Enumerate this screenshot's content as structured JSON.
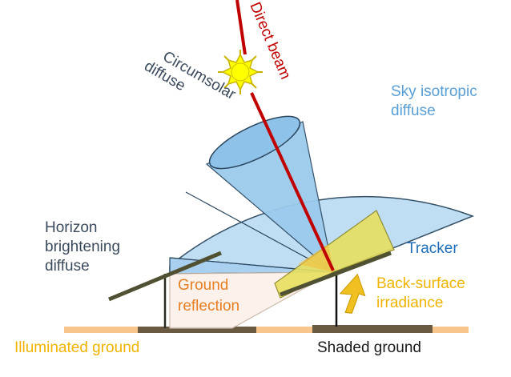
{
  "labels": {
    "direct_beam": "Direct beam",
    "circumsolar": [
      "Circumsolar",
      "diffuse"
    ],
    "sky_isotropic": [
      "Sky isotropic",
      "diffuse"
    ],
    "horizon": [
      "Horizon",
      "brightening",
      "diffuse"
    ],
    "tracker": "Tracker",
    "ground_reflection": [
      "Ground",
      "reflection"
    ],
    "back_surface": [
      "Back-surface",
      "irradiance"
    ],
    "illuminated_ground": "Illuminated ground",
    "shaded_ground": "Shaded ground"
  },
  "colors": {
    "sky_fill": "#bcdcf3",
    "sky_stroke": "#2b4860",
    "circumsolar_fill": "#8ec2e8",
    "direct_beam": "#c00000",
    "sun_fill": "#ffff00",
    "sun_stroke": "#c8b400",
    "yellow_wedge": "#e8e060",
    "ground_band": "#f8c58c",
    "ground_shadow": "#6b5a42",
    "panel": "#505032",
    "text_dark": "#3b4a5c",
    "text_blue": "#5a9fd6",
    "text_tracker": "#1f6fb8",
    "text_orange": "#e67e22",
    "text_gold": "#f0b400",
    "text_black": "#1a1a1a"
  },
  "icons": {
    "sun": "sun-icon",
    "arrow": "up-arrow-icon"
  }
}
